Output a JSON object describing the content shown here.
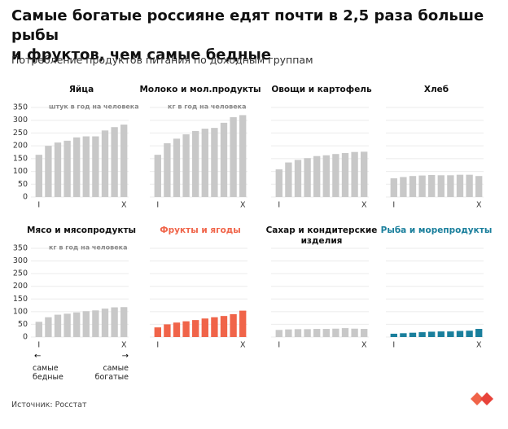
{
  "title": "Самые богатые россияне едят почти в 2,5 раза больше рыбы\nи фруктов, чем самые бедные",
  "subtitle": "Потребление продуктов питания по доходным группам",
  "poor_label": "самые\nбедные",
  "rich_label": "самые\nбогатые",
  "source": "Источник: Росстат",
  "chart_data": [
    {
      "type": "bar",
      "title": "Яйца",
      "unit": "штук в год на человека",
      "categories": [
        "I",
        null,
        null,
        null,
        null,
        null,
        null,
        null,
        null,
        "X"
      ],
      "values": [
        165,
        200,
        213,
        220,
        233,
        237,
        237,
        260,
        273,
        283
      ],
      "color": "#c8c8c8",
      "title_color": "#111111",
      "ylim": [
        0,
        350
      ],
      "yticks": [
        0,
        50,
        100,
        150,
        200,
        250,
        300,
        350
      ],
      "grid": true
    },
    {
      "type": "bar",
      "title": "Молоко и мол.продукты",
      "unit": "кг в год на человека",
      "categories": [
        "I",
        null,
        null,
        null,
        null,
        null,
        null,
        null,
        null,
        "X"
      ],
      "values": [
        165,
        210,
        228,
        245,
        258,
        267,
        270,
        290,
        312,
        320
      ],
      "color": "#c8c8c8",
      "title_color": "#111111",
      "ylim": [
        0,
        350
      ],
      "grid": true
    },
    {
      "type": "bar",
      "title": "Овощи и картофель",
      "categories": [
        "I",
        null,
        null,
        null,
        null,
        null,
        null,
        null,
        null,
        "X"
      ],
      "values": [
        108,
        135,
        145,
        152,
        160,
        163,
        168,
        172,
        176,
        177
      ],
      "color": "#c8c8c8",
      "title_color": "#111111",
      "ylim": [
        0,
        350
      ],
      "grid": true
    },
    {
      "type": "bar",
      "title": "Хлеб",
      "categories": [
        "I",
        null,
        null,
        null,
        null,
        null,
        null,
        null,
        null,
        "X"
      ],
      "values": [
        73,
        78,
        82,
        84,
        86,
        85,
        85,
        87,
        87,
        82
      ],
      "color": "#c8c8c8",
      "title_color": "#111111",
      "ylim": [
        0,
        350
      ],
      "grid": true
    },
    {
      "type": "bar",
      "title": "Мясо и мясопродукты",
      "unit": "кг в год на человека",
      "categories": [
        "I",
        null,
        null,
        null,
        null,
        null,
        null,
        null,
        null,
        "X"
      ],
      "values": [
        60,
        78,
        88,
        92,
        97,
        102,
        105,
        112,
        117,
        118
      ],
      "color": "#c8c8c8",
      "title_color": "#111111",
      "ylim": [
        0,
        350
      ],
      "yticks": [
        0,
        50,
        100,
        150,
        200,
        250,
        300,
        350
      ],
      "grid": true
    },
    {
      "type": "bar",
      "title": "Фрукты и ягоды",
      "categories": [
        "I",
        null,
        null,
        null,
        null,
        null,
        null,
        null,
        null,
        "X"
      ],
      "values": [
        38,
        50,
        57,
        62,
        67,
        73,
        78,
        83,
        90,
        104
      ],
      "color": "#f06449",
      "title_color": "#f06449",
      "ylim": [
        0,
        350
      ],
      "grid": true
    },
    {
      "type": "bar",
      "title": "Сахар и кондитерские\nизделия",
      "categories": [
        "I",
        null,
        null,
        null,
        null,
        null,
        null,
        null,
        null,
        "X"
      ],
      "values": [
        28,
        30,
        31,
        31,
        32,
        32,
        33,
        35,
        33,
        32
      ],
      "color": "#c8c8c8",
      "title_color": "#111111",
      "ylim": [
        0,
        350
      ],
      "grid": true
    },
    {
      "type": "bar",
      "title": "Рыба и морепродукты",
      "categories": [
        "I",
        null,
        null,
        null,
        null,
        null,
        null,
        null,
        null,
        "X"
      ],
      "values": [
        13,
        15,
        17,
        19,
        21,
        22,
        22,
        24,
        25,
        32
      ],
      "color": "#1a7f9c",
      "title_color": "#1a7f9c",
      "ylim": [
        0,
        350
      ],
      "grid": true
    }
  ]
}
